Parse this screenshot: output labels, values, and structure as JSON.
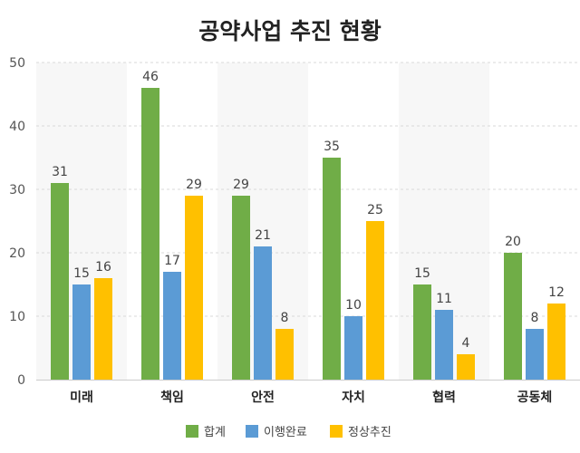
{
  "chart_data": {
    "type": "bar",
    "title": "공약사업 추진 현황",
    "categories": [
      "미래",
      "책임",
      "안전",
      "자치",
      "협력",
      "공동체"
    ],
    "series": [
      {
        "name": "합계",
        "color": "#70ad47",
        "values": [
          31,
          46,
          29,
          35,
          15,
          20
        ]
      },
      {
        "name": "이행완료",
        "color": "#5b9bd5",
        "values": [
          15,
          17,
          21,
          10,
          11,
          8
        ]
      },
      {
        "name": "정상추진",
        "color": "#ffc000",
        "values": [
          16,
          29,
          8,
          25,
          4,
          12
        ]
      }
    ],
    "ylim": [
      0,
      50
    ],
    "yticks": [
      0,
      10,
      20,
      30,
      40,
      50
    ],
    "grid": true,
    "data_labels": true,
    "legend_position": "bottom",
    "band_color": "#f7f7f7"
  }
}
